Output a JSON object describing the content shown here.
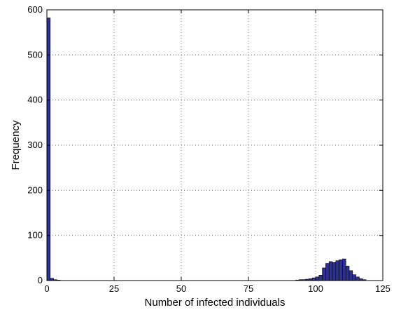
{
  "chart_data": {
    "type": "bar",
    "title": "",
    "xlabel": "Number of infected individuals",
    "ylabel": "Frequency",
    "xlim": [
      0,
      125
    ],
    "ylim": [
      0,
      600
    ],
    "xticks": [
      0,
      25,
      50,
      75,
      100,
      125
    ],
    "yticks": [
      0,
      100,
      200,
      300,
      400,
      500,
      600
    ],
    "grid": true,
    "bar_color": "#2e3192",
    "bar_edge_color": "#000000",
    "bin_width": 1.25,
    "x": [
      0,
      1.25,
      2.5,
      3.75,
      92.5,
      93.75,
      95,
      96.25,
      97.5,
      98.75,
      100,
      101.25,
      102.5,
      103.75,
      105,
      106.25,
      107.5,
      108.75,
      110,
      111.25,
      112.5,
      113.75,
      115,
      116.25,
      117.5
    ],
    "values": [
      582,
      5,
      2,
      1,
      1,
      2,
      2,
      3,
      4,
      6,
      8,
      12,
      28,
      38,
      42,
      40,
      44,
      46,
      48,
      32,
      22,
      13,
      8,
      4,
      2
    ]
  }
}
